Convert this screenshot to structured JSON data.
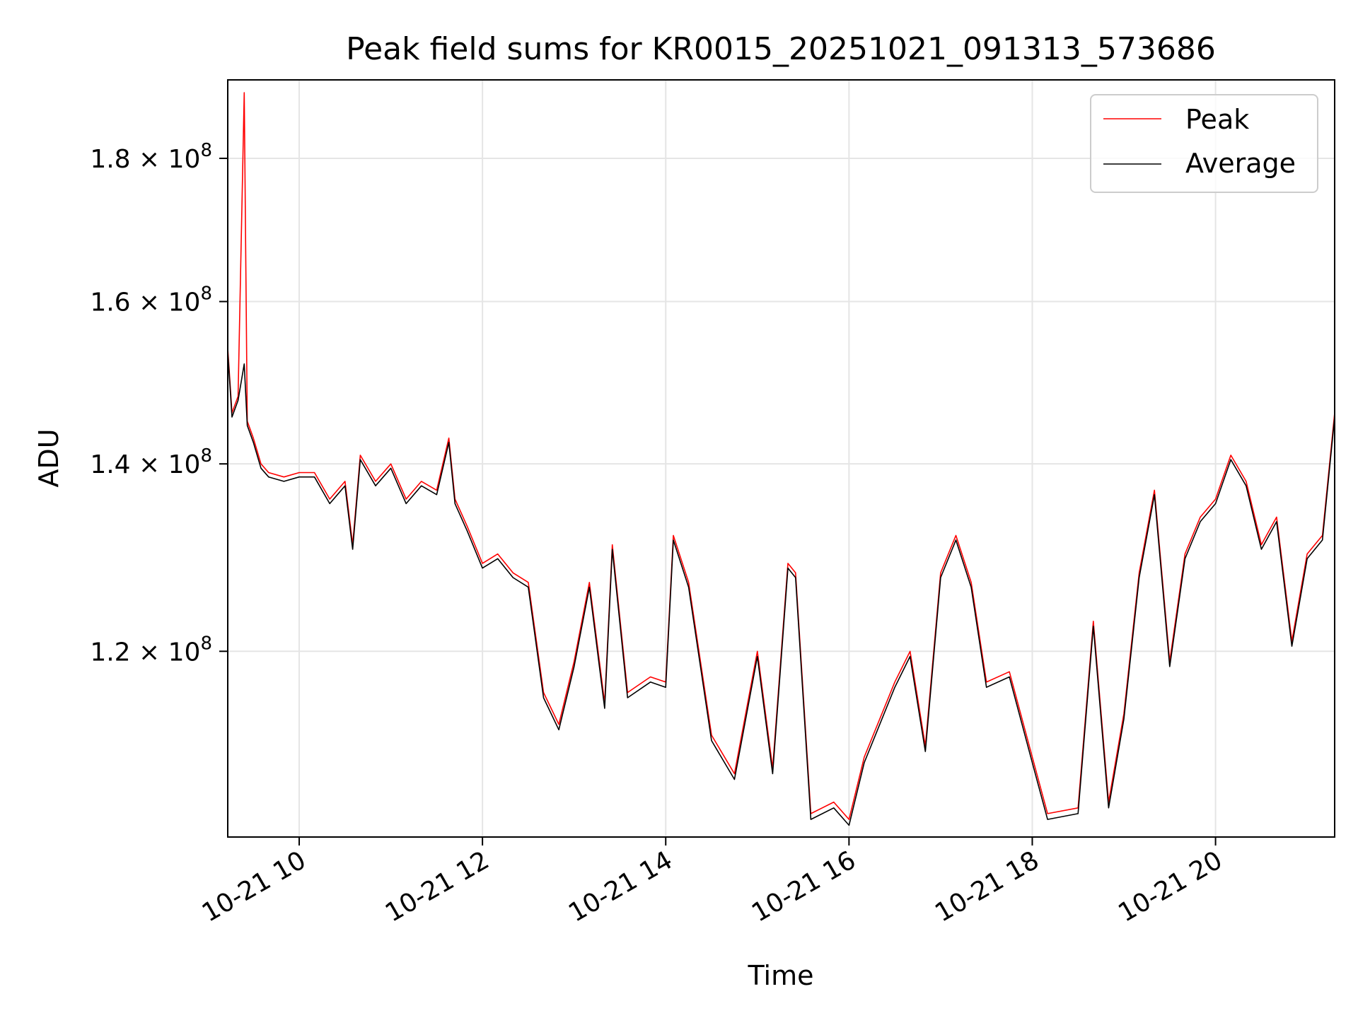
{
  "chart_data": {
    "type": "line",
    "title": "Peak field sums for KR0015_20251021_091313_573686",
    "xlabel": "Time",
    "ylabel": "ADU",
    "y_scale": "log",
    "xlim": [
      "2025-10-21T09:13:13",
      "2025-10-21T21:18:00"
    ],
    "ylim": [
      103000000,
      192000000
    ],
    "x_ticks": [
      "2025-10-21T10:00",
      "2025-10-21T12:00",
      "2025-10-21T14:00",
      "2025-10-21T16:00",
      "2025-10-21T18:00",
      "2025-10-21T20:00"
    ],
    "x_tick_labels": [
      "10-21 10",
      "10-21 12",
      "10-21 14",
      "10-21 16",
      "10-21 18",
      "10-21 20"
    ],
    "y_ticks": [
      120000000,
      140000000,
      160000000,
      180000000
    ],
    "y_tick_labels": [
      {
        "mantissa": "1.2",
        "exponent": "8"
      },
      {
        "mantissa": "1.4",
        "exponent": "8"
      },
      {
        "mantissa": "1.6",
        "exponent": "8"
      },
      {
        "mantissa": "1.8",
        "exponent": "8"
      }
    ],
    "grid": true,
    "legend_position": "top-right",
    "series": [
      {
        "name": "Peak",
        "color": "#ff0000",
        "x": [
          "2025-10-21T09:13:13",
          "2025-10-21T09:16",
          "2025-10-21T09:20",
          "2025-10-21T09:24",
          "2025-10-21T09:26",
          "2025-10-21T09:30",
          "2025-10-21T09:35",
          "2025-10-21T09:40",
          "2025-10-21T09:50",
          "2025-10-21T10:00",
          "2025-10-21T10:10",
          "2025-10-21T10:20",
          "2025-10-21T10:30",
          "2025-10-21T10:35",
          "2025-10-21T10:40",
          "2025-10-21T10:50",
          "2025-10-21T11:00",
          "2025-10-21T11:10",
          "2025-10-21T11:20",
          "2025-10-21T11:30",
          "2025-10-21T11:38",
          "2025-10-21T11:42",
          "2025-10-21T11:50",
          "2025-10-21T12:00",
          "2025-10-21T12:10",
          "2025-10-21T12:20",
          "2025-10-21T12:30",
          "2025-10-21T12:40",
          "2025-10-21T12:50",
          "2025-10-21T13:00",
          "2025-10-21T13:10",
          "2025-10-21T13:20",
          "2025-10-21T13:25",
          "2025-10-21T13:35",
          "2025-10-21T13:50",
          "2025-10-21T14:00",
          "2025-10-21T14:05",
          "2025-10-21T14:15",
          "2025-10-21T14:30",
          "2025-10-21T14:45",
          "2025-10-21T15:00",
          "2025-10-21T15:10",
          "2025-10-21T15:20",
          "2025-10-21T15:25",
          "2025-10-21T15:35",
          "2025-10-21T15:50",
          "2025-10-21T16:00",
          "2025-10-21T16:10",
          "2025-10-21T16:30",
          "2025-10-21T16:40",
          "2025-10-21T16:50",
          "2025-10-21T17:00",
          "2025-10-21T17:10",
          "2025-10-21T17:20",
          "2025-10-21T17:30",
          "2025-10-21T17:45",
          "2025-10-21T18:00",
          "2025-10-21T18:10",
          "2025-10-21T18:30",
          "2025-10-21T18:40",
          "2025-10-21T18:50",
          "2025-10-21T19:00",
          "2025-10-21T19:10",
          "2025-10-21T19:20",
          "2025-10-21T19:30",
          "2025-10-21T19:40",
          "2025-10-21T19:50",
          "2025-10-21T20:00",
          "2025-10-21T20:10",
          "2025-10-21T20:20",
          "2025-10-21T20:30",
          "2025-10-21T20:40",
          "2025-10-21T20:50",
          "2025-10-21T21:00",
          "2025-10-21T21:10",
          "2025-10-21T21:18"
        ],
        "values": [
          154000000,
          146000000,
          148000000,
          190000000,
          145000000,
          143000000,
          140000000,
          139000000,
          138500000,
          139000000,
          139000000,
          136000000,
          138000000,
          131000000,
          141000000,
          138000000,
          140000000,
          136000000,
          138000000,
          137000000,
          143000000,
          136000000,
          133000000,
          129000000,
          130000000,
          128000000,
          127000000,
          116000000,
          113000000,
          119000000,
          127000000,
          115000000,
          131000000,
          116000000,
          117500000,
          117000000,
          132000000,
          127000000,
          112000000,
          108500000,
          120000000,
          109000000,
          129000000,
          128000000,
          105000000,
          106000000,
          104500000,
          110000000,
          117000000,
          120000000,
          111000000,
          128000000,
          132000000,
          127000000,
          117000000,
          118000000,
          110000000,
          105000000,
          105500000,
          123000000,
          106000000,
          114000000,
          128000000,
          137000000,
          119000000,
          130000000,
          134000000,
          136000000,
          141000000,
          138000000,
          131000000,
          134000000,
          121000000,
          130000000,
          132000000,
          146000000
        ]
      },
      {
        "name": "Average",
        "color": "#000000",
        "x": [
          "2025-10-21T09:13:13",
          "2025-10-21T09:16",
          "2025-10-21T09:20",
          "2025-10-21T09:24",
          "2025-10-21T09:26",
          "2025-10-21T09:30",
          "2025-10-21T09:35",
          "2025-10-21T09:40",
          "2025-10-21T09:50",
          "2025-10-21T10:00",
          "2025-10-21T10:10",
          "2025-10-21T10:20",
          "2025-10-21T10:30",
          "2025-10-21T10:35",
          "2025-10-21T10:40",
          "2025-10-21T10:50",
          "2025-10-21T11:00",
          "2025-10-21T11:10",
          "2025-10-21T11:20",
          "2025-10-21T11:30",
          "2025-10-21T11:38",
          "2025-10-21T11:42",
          "2025-10-21T11:50",
          "2025-10-21T12:00",
          "2025-10-21T12:10",
          "2025-10-21T12:20",
          "2025-10-21T12:30",
          "2025-10-21T12:40",
          "2025-10-21T12:50",
          "2025-10-21T13:00",
          "2025-10-21T13:10",
          "2025-10-21T13:20",
          "2025-10-21T13:25",
          "2025-10-21T13:35",
          "2025-10-21T13:50",
          "2025-10-21T14:00",
          "2025-10-21T14:05",
          "2025-10-21T14:15",
          "2025-10-21T14:30",
          "2025-10-21T14:45",
          "2025-10-21T15:00",
          "2025-10-21T15:10",
          "2025-10-21T15:20",
          "2025-10-21T15:25",
          "2025-10-21T15:35",
          "2025-10-21T15:50",
          "2025-10-21T16:00",
          "2025-10-21T16:10",
          "2025-10-21T16:30",
          "2025-10-21T16:40",
          "2025-10-21T16:50",
          "2025-10-21T17:00",
          "2025-10-21T17:10",
          "2025-10-21T17:20",
          "2025-10-21T17:30",
          "2025-10-21T17:45",
          "2025-10-21T18:00",
          "2025-10-21T18:10",
          "2025-10-21T18:30",
          "2025-10-21T18:40",
          "2025-10-21T18:50",
          "2025-10-21T19:00",
          "2025-10-21T19:10",
          "2025-10-21T19:20",
          "2025-10-21T19:30",
          "2025-10-21T19:40",
          "2025-10-21T19:50",
          "2025-10-21T20:00",
          "2025-10-21T20:10",
          "2025-10-21T20:20",
          "2025-10-21T20:30",
          "2025-10-21T20:40",
          "2025-10-21T20:50",
          "2025-10-21T21:00",
          "2025-10-21T21:10",
          "2025-10-21T21:18"
        ],
        "values": [
          153500000,
          145500000,
          147500000,
          152000000,
          144500000,
          142500000,
          139500000,
          138500000,
          138000000,
          138500000,
          138500000,
          135500000,
          137500000,
          130500000,
          140500000,
          137500000,
          139500000,
          135500000,
          137500000,
          136500000,
          142500000,
          135500000,
          132500000,
          128500000,
          129500000,
          127500000,
          126500000,
          115500000,
          112500000,
          118500000,
          126500000,
          114500000,
          130500000,
          115500000,
          117000000,
          116500000,
          131500000,
          126500000,
          111500000,
          108000000,
          119500000,
          108500000,
          128500000,
          127500000,
          104500000,
          105500000,
          104000000,
          109500000,
          116500000,
          119500000,
          110500000,
          127500000,
          131500000,
          126500000,
          116500000,
          117500000,
          109500000,
          104500000,
          105000000,
          122500000,
          105500000,
          113500000,
          127500000,
          136500000,
          118500000,
          129500000,
          133500000,
          135500000,
          140500000,
          137500000,
          130500000,
          133500000,
          120500000,
          129500000,
          131500000,
          145500000
        ]
      }
    ]
  }
}
